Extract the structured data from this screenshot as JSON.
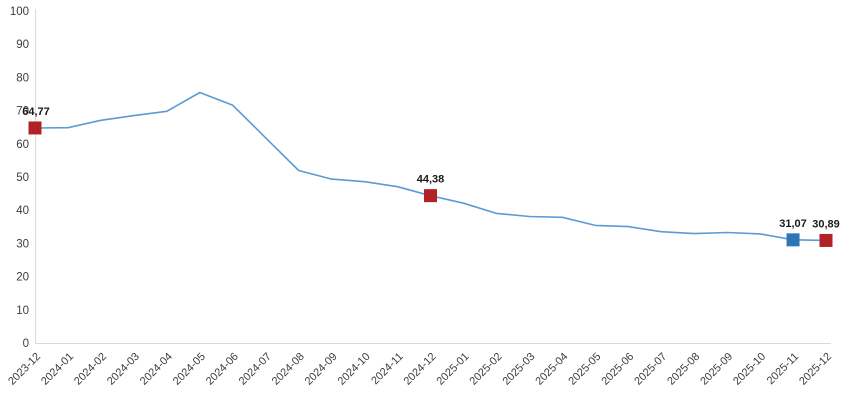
{
  "chart_data": {
    "type": "line",
    "title": "",
    "xlabel": "",
    "ylabel": "",
    "x": [
      "2023-12",
      "2024-01",
      "2024-02",
      "2024-03",
      "2024-04",
      "2024-05",
      "2024-06",
      "2024-07",
      "2024-08",
      "2024-09",
      "2024-10",
      "2024-11",
      "2024-12",
      "2025-01",
      "2025-02",
      "2025-03",
      "2025-04",
      "2025-05",
      "2025-06",
      "2025-07",
      "2025-08",
      "2025-09",
      "2025-10",
      "2025-11",
      "2025-12"
    ],
    "values": [
      64.77,
      64.86,
      67.07,
      68.5,
      69.8,
      75.45,
      71.6,
      61.78,
      51.97,
      49.38,
      48.58,
      47.09,
      44.38,
      42.12,
      39.05,
      38.1,
      37.86,
      35.41,
      35.05,
      33.52,
      32.95,
      33.29,
      32.87,
      31.07,
      30.89
    ],
    "ylim": [
      0,
      100
    ],
    "y_ticks": [
      0,
      10,
      20,
      30,
      40,
      50,
      60,
      70,
      80,
      90,
      100
    ],
    "grid": false,
    "legend": "none",
    "decimal_separator": ",",
    "marked_points": [
      {
        "x": "2023-12",
        "index": 0,
        "value": 64.77,
        "label": "64,77",
        "marker_color": "#B02227"
      },
      {
        "x": "2024-12",
        "index": 12,
        "value": 44.38,
        "label": "44,38",
        "marker_color": "#B02227"
      },
      {
        "x": "2025-11",
        "index": 23,
        "value": 31.07,
        "label": "31,07",
        "marker_color": "#2E75B6"
      },
      {
        "x": "2025-12",
        "index": 24,
        "value": 30.89,
        "label": "30,89",
        "marker_color": "#B02227"
      }
    ],
    "colors": {
      "line": "#5B9BD5",
      "axis_line": "#D9D9D9",
      "tick_text": "#3D3D3D",
      "data_label_text": "#1A1A1A",
      "marker_red": "#B02227",
      "marker_blue": "#2E75B6"
    }
  }
}
